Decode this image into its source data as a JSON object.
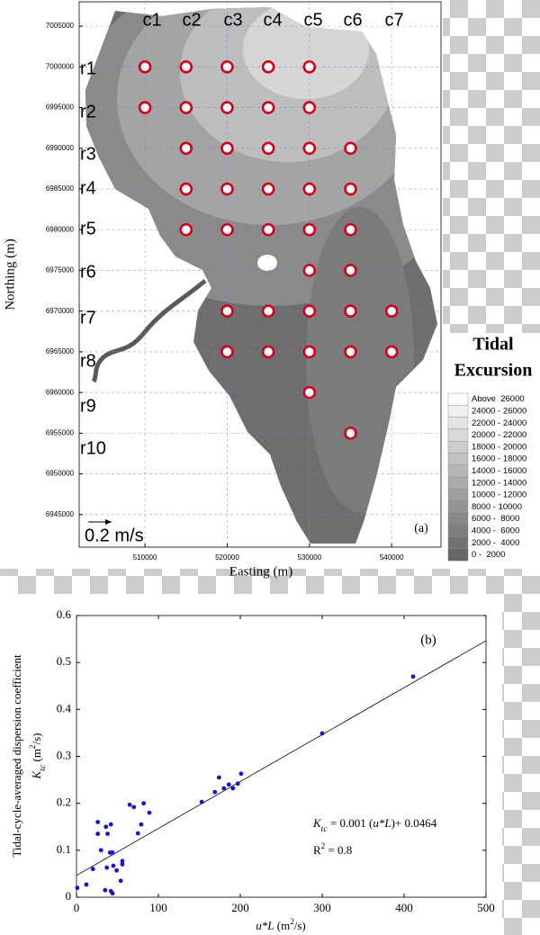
{
  "chart_data": [
    {
      "type": "map",
      "x_label": "Easting (m)",
      "y_label": "Northing (m)",
      "xlim": [
        502000,
        546000
      ],
      "ylim": [
        6941000,
        7008000
      ],
      "xticks": [
        510000,
        520000,
        530000,
        540000
      ],
      "yticks": [
        6945000,
        6950000,
        6955000,
        6960000,
        6965000,
        6970000,
        6975000,
        6980000,
        6985000,
        6990000,
        6995000,
        7000000,
        7005000
      ],
      "grid": true,
      "columns": [
        "c1",
        "c2",
        "c3",
        "c4",
        "c5",
        "c6",
        "c7"
      ],
      "rows": [
        "r1",
        "r2",
        "r3",
        "r4",
        "r5",
        "r6",
        "r7",
        "r8",
        "r9",
        "r10"
      ],
      "stations": {
        "color": "#d0021b",
        "x": [
          510000,
          515000,
          520000,
          525000,
          530000,
          510000,
          515000,
          520000,
          525000,
          530000,
          515000,
          520000,
          525000,
          530000,
          535000,
          515000,
          520000,
          525000,
          530000,
          535000,
          515000,
          520000,
          525000,
          530000,
          535000,
          530000,
          535000,
          520000,
          525000,
          530000,
          535000,
          540000,
          520000,
          525000,
          530000,
          535000,
          540000,
          530000,
          535000
        ],
        "y": [
          7000000,
          7000000,
          7000000,
          7000000,
          7000000,
          6995000,
          6995000,
          6995000,
          6995000,
          6995000,
          6990000,
          6990000,
          6990000,
          6990000,
          6990000,
          6985000,
          6985000,
          6985000,
          6985000,
          6985000,
          6980000,
          6980000,
          6980000,
          6980000,
          6980000,
          6975000,
          6975000,
          6970000,
          6970000,
          6970000,
          6970000,
          6970000,
          6965000,
          6965000,
          6965000,
          6965000,
          6965000,
          6960000,
          6955000
        ]
      },
      "scale_label": "0.2 m/s",
      "panel_label": "(a)",
      "legend": {
        "title": [
          "Tidal",
          "Excursion"
        ],
        "labels": [
          "Above  26000",
          "24000 - 26000",
          "22000 - 24000",
          "20000 - 22000",
          "18000 - 20000",
          "16000 - 18000",
          "14000 - 16000",
          "12000 - 14000",
          "10000 - 12000",
          "8000 - 10000",
          "6000 -  8000",
          "4000 -  6000",
          "2000 -  4000",
          "0 -  2000"
        ],
        "colors": [
          "#fbfbfb",
          "#f0f0f0",
          "#e4e4e4",
          "#d9d9d9",
          "#cdcdcd",
          "#c2c2c2",
          "#b6b6b6",
          "#ababab",
          "#9f9f9f",
          "#949494",
          "#888888",
          "#7d7d7d",
          "#717171",
          "#666666"
        ]
      }
    },
    {
      "type": "scatter",
      "y_label_title": "Tidal-cycle-averaged dispersion coefficient",
      "y_label": [
        "K",
        "tc",
        " (m",
        "2",
        "/s)"
      ],
      "x_label": [
        "u*L",
        " (m",
        "2",
        "/s)"
      ],
      "panel_label": "(b)",
      "xlim": [
        0,
        500
      ],
      "ylim": [
        0,
        0.6
      ],
      "xticks": [
        0,
        100,
        200,
        300,
        400,
        500
      ],
      "yticks": [
        0,
        0.1,
        0.2,
        0.3,
        0.4,
        0.5,
        0.6
      ],
      "color": "#1414c8",
      "x": [
        1,
        12,
        20,
        26,
        26,
        30,
        35,
        37,
        36,
        41,
        42,
        38,
        42,
        44,
        45,
        44,
        49,
        54,
        56,
        56,
        65,
        70,
        75,
        82,
        79,
        89,
        153,
        169,
        174,
        180,
        186,
        191,
        197,
        201,
        300,
        411
      ],
      "y": [
        0.02,
        0.027,
        0.06,
        0.16,
        0.135,
        0.1,
        0.015,
        0.063,
        0.15,
        0.095,
        0.155,
        0.135,
        0.013,
        0.095,
        0.067,
        0.008,
        0.057,
        0.035,
        0.07,
        0.077,
        0.197,
        0.192,
        0.136,
        0.2,
        0.155,
        0.18,
        0.203,
        0.224,
        0.255,
        0.232,
        0.24,
        0.232,
        0.242,
        0.263,
        0.349,
        0.47
      ],
      "trendline": {
        "slope": 0.001,
        "intercept": 0.0464,
        "color": "#000000"
      },
      "equation": [
        "K",
        "tc",
        " = 0.001 (",
        "u*L",
        ")+ 0.0464"
      ],
      "r_squared": [
        "R",
        "2",
        " = 0.8"
      ]
    }
  ]
}
